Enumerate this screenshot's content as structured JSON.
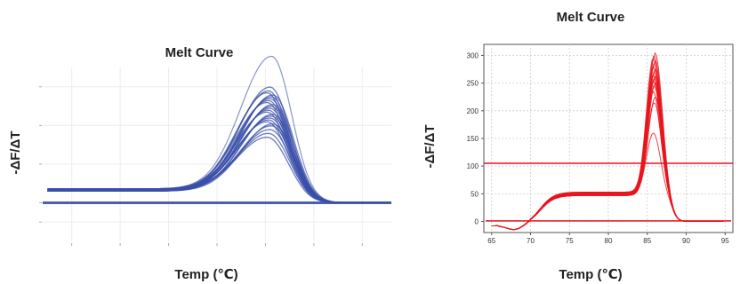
{
  "chart_data": [
    {
      "type": "line",
      "title": "Melt Curve",
      "xlabel": "Temp (℃)",
      "ylabel": "-ΔF/ΔT",
      "xlim": [
        62,
        98
      ],
      "ylim": [
        -100,
        350
      ],
      "grid": true,
      "x_ticks": [],
      "y_ticks": [],
      "color": "#3a4fa8",
      "peak_temp": 85.5,
      "peak_values": [
        170,
        180,
        190,
        200,
        205,
        210,
        215,
        220,
        225,
        230,
        235,
        240,
        245,
        250,
        255,
        260,
        265,
        270,
        275,
        280,
        285,
        290,
        300,
        380
      ],
      "baseline_level": 30,
      "flat_line_level": 0
    },
    {
      "type": "line",
      "title": "Melt Curve",
      "xlabel": "Temp (℃)",
      "ylabel": "-ΔF/ΔT",
      "xlim": [
        64,
        96
      ],
      "ylim": [
        -20,
        320
      ],
      "grid": true,
      "x_ticks": [
        "65",
        "70",
        "75",
        "80",
        "85",
        "90",
        "95"
      ],
      "y_ticks": [
        "0",
        "50",
        "100",
        "150",
        "200",
        "250",
        "300"
      ],
      "color": "#e8141c",
      "threshold": 105,
      "peak_temp": 85.9,
      "plateau_level": 50,
      "peak_values": [
        160,
        215,
        225,
        235,
        245,
        250,
        255,
        258,
        262,
        265,
        270,
        275,
        280,
        285,
        290,
        296,
        300,
        305
      ]
    }
  ]
}
